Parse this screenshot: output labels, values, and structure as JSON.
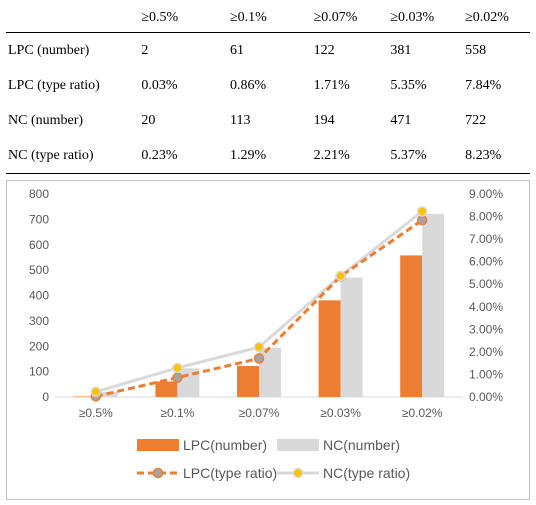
{
  "table": {
    "headers": [
      "",
      "≥0.5%",
      "≥0.1%",
      "≥0.07%",
      "≥0.03%",
      "≥0.02%"
    ],
    "rows": [
      {
        "label": "LPC (number)",
        "cells": [
          "2",
          "61",
          "122",
          "381",
          "558"
        ]
      },
      {
        "label": "LPC (type ratio)",
        "cells": [
          "0.03%",
          "0.86%",
          "1.71%",
          "5.35%",
          "7.84%"
        ]
      },
      {
        "label": "NC (number)",
        "cells": [
          "20",
          "113",
          "194",
          "471",
          "722"
        ]
      },
      {
        "label": "NC (type ratio)",
        "cells": [
          "0.23%",
          "1.29%",
          "2.21%",
          "5.37%",
          "8.23%"
        ]
      }
    ]
  },
  "chart_data": {
    "type": "bar",
    "categories": [
      "≥0.5%",
      "≥0.1%",
      "≥0.07%",
      "≥0.03%",
      "≥0.02%"
    ],
    "series": [
      {
        "name": "LPC(number)",
        "kind": "bar",
        "axis": "left",
        "color": "#ED7D31",
        "values": [
          2,
          61,
          122,
          381,
          558
        ]
      },
      {
        "name": "NC(number)",
        "kind": "bar",
        "axis": "left",
        "color": "#D9D9D9",
        "values": [
          20,
          113,
          194,
          471,
          722
        ]
      },
      {
        "name": "LPC(type ratio)",
        "kind": "line",
        "axis": "right",
        "style": "dashed",
        "color": "#ED7D31",
        "marker_color": "#A5A5A5",
        "values": [
          0.03,
          0.86,
          1.71,
          5.35,
          7.84
        ]
      },
      {
        "name": "NC(type ratio)",
        "kind": "line",
        "axis": "right",
        "style": "solid",
        "color": "#D9D9D9",
        "marker_color": "#FFC000",
        "values": [
          0.23,
          1.29,
          2.21,
          5.37,
          8.23
        ]
      }
    ],
    "y_left": {
      "min": 0,
      "max": 800,
      "step": 100,
      "ticks": [
        "0",
        "100",
        "200",
        "300",
        "400",
        "500",
        "600",
        "700",
        "800"
      ]
    },
    "y_right": {
      "min": 0,
      "max": 9,
      "step": 1,
      "unit": "%",
      "ticks": [
        "0.00%",
        "1.00%",
        "2.00%",
        "3.00%",
        "4.00%",
        "5.00%",
        "6.00%",
        "7.00%",
        "8.00%",
        "9.00%"
      ]
    },
    "grid": false,
    "legend_position": "bottom"
  }
}
